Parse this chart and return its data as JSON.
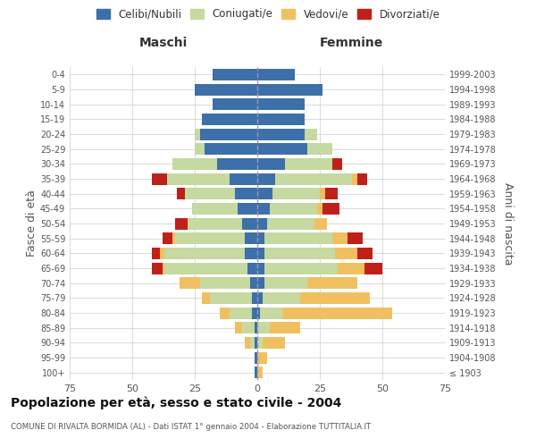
{
  "age_groups": [
    "100+",
    "95-99",
    "90-94",
    "85-89",
    "80-84",
    "75-79",
    "70-74",
    "65-69",
    "60-64",
    "55-59",
    "50-54",
    "45-49",
    "40-44",
    "35-39",
    "30-34",
    "25-29",
    "20-24",
    "15-19",
    "10-14",
    "5-9",
    "0-4"
  ],
  "birth_years": [
    "≤ 1903",
    "1904-1908",
    "1909-1913",
    "1914-1918",
    "1919-1923",
    "1924-1928",
    "1929-1933",
    "1934-1938",
    "1939-1943",
    "1944-1948",
    "1949-1953",
    "1954-1958",
    "1959-1963",
    "1964-1968",
    "1969-1973",
    "1974-1978",
    "1979-1983",
    "1984-1988",
    "1989-1993",
    "1994-1998",
    "1999-2003"
  ],
  "colors": {
    "celibi": "#3d6fa8",
    "coniugati": "#c5d9a0",
    "vedovi": "#f0c060",
    "divorziati": "#c0201a"
  },
  "males": {
    "celibi": [
      1,
      1,
      1,
      1,
      2,
      2,
      3,
      4,
      5,
      5,
      6,
      8,
      9,
      11,
      16,
      21,
      23,
      22,
      18,
      25,
      18
    ],
    "coniugati": [
      0,
      0,
      2,
      5,
      9,
      17,
      20,
      33,
      32,
      28,
      22,
      18,
      20,
      25,
      18,
      4,
      2,
      0,
      0,
      0,
      0
    ],
    "vedovi": [
      0,
      0,
      2,
      3,
      4,
      3,
      8,
      1,
      2,
      1,
      0,
      0,
      0,
      0,
      0,
      0,
      0,
      0,
      0,
      0,
      0
    ],
    "divorziati": [
      0,
      0,
      0,
      0,
      0,
      0,
      0,
      4,
      3,
      4,
      5,
      0,
      3,
      6,
      0,
      0,
      0,
      0,
      0,
      0,
      0
    ]
  },
  "females": {
    "celibi": [
      0,
      0,
      0,
      0,
      1,
      2,
      3,
      3,
      3,
      3,
      4,
      5,
      6,
      7,
      11,
      20,
      19,
      19,
      19,
      26,
      15
    ],
    "coniugati": [
      0,
      0,
      2,
      5,
      9,
      15,
      17,
      29,
      28,
      27,
      19,
      19,
      19,
      31,
      19,
      10,
      5,
      0,
      0,
      0,
      0
    ],
    "vedovi": [
      2,
      4,
      9,
      12,
      44,
      28,
      20,
      11,
      9,
      6,
      5,
      2,
      2,
      2,
      0,
      0,
      0,
      0,
      0,
      0,
      0
    ],
    "divorziati": [
      0,
      0,
      0,
      0,
      0,
      0,
      0,
      7,
      6,
      6,
      0,
      7,
      5,
      4,
      4,
      0,
      0,
      0,
      0,
      0,
      0
    ]
  },
  "xlim": 75,
  "title": "Popolazione per età, sesso e stato civile - 2004",
  "subtitle": "COMUNE DI RIVALTA BORMIDA (AL) - Dati ISTAT 1° gennaio 2004 - Elaborazione TUTTITALIA.IT",
  "ylabel_left": "Fasce di età",
  "ylabel_right": "Anni di nascita",
  "header_left": "Maschi",
  "header_right": "Femmine",
  "legend_labels": [
    "Celibi/Nubili",
    "Coniugati/e",
    "Vedovi/e",
    "Divorziati/e"
  ],
  "background_color": "#ffffff",
  "grid_color": "#cccccc"
}
